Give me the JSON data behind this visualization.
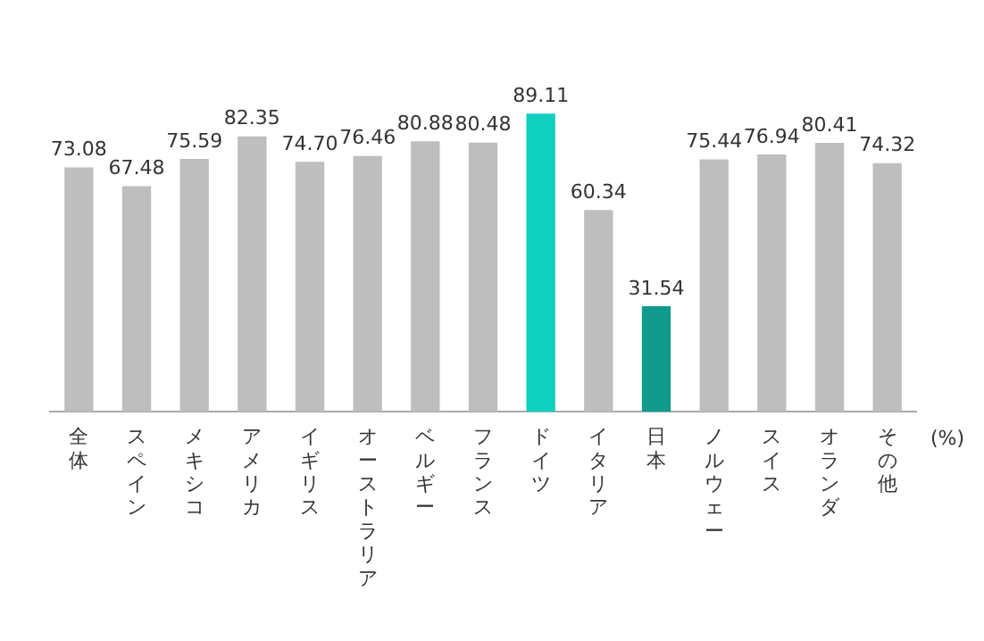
{
  "chart_data": {
    "type": "bar",
    "categories": [
      "全体",
      "スペイン",
      "メキシコ",
      "アメリカ",
      "イギリス",
      "オーストラリア",
      "ベルギー",
      "フランス",
      "ドイツ",
      "イタリア",
      "日本",
      "ノルウェー",
      "スイス",
      "オランダ",
      "その他"
    ],
    "values": [
      73.08,
      67.48,
      75.59,
      82.35,
      74.7,
      76.46,
      80.88,
      80.48,
      89.11,
      60.34,
      31.54,
      75.44,
      76.94,
      80.41,
      74.32
    ],
    "colors": [
      "#bebebe",
      "#bebebe",
      "#bebebe",
      "#bebebe",
      "#bebebe",
      "#bebebe",
      "#bebebe",
      "#bebebe",
      "#0fcfbf",
      "#bebebe",
      "#0f9a8c",
      "#bebebe",
      "#bebebe",
      "#bebebe",
      "#bebebe"
    ],
    "value_labels": [
      "73.08",
      "67.48",
      "75.59",
      "82.35",
      "74.70",
      "76.46",
      "80.88",
      "80.48",
      "89.11",
      "60.34",
      "31.54",
      "75.44",
      "76.94",
      "80.41",
      "74.32"
    ],
    "relative": false,
    "grid": false,
    "legend": false,
    "annotations": [
      "(%)"
    ]
  }
}
